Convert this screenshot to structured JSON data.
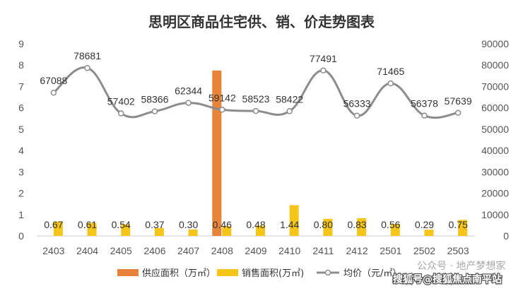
{
  "chart_data": {
    "type": "bar+line",
    "title": "思明区商品住宅供、销、价走势图表",
    "categories": [
      "2403",
      "2404",
      "2405",
      "2406",
      "2407",
      "2408",
      "2409",
      "2410",
      "2411",
      "2412",
      "2501",
      "2502",
      "2503"
    ],
    "series": [
      {
        "name": "供应面积（万㎡）",
        "type": "bar",
        "axis": "left",
        "color": "#E8833A",
        "values": [
          0,
          0,
          0,
          0,
          0,
          7.75,
          0,
          0,
          0,
          0,
          0,
          0,
          0
        ]
      },
      {
        "name": "销售面积(万㎡)",
        "type": "bar",
        "axis": "left",
        "color": "#F5C518",
        "values": [
          0.67,
          0.61,
          0.54,
          0.37,
          0.3,
          0.46,
          0.48,
          1.44,
          0.8,
          0.83,
          0.56,
          0.29,
          0.75
        ]
      },
      {
        "name": "均价（元/㎡）",
        "type": "line",
        "axis": "right",
        "color": "#8C8C8C",
        "values": [
          67088,
          78681,
          57402,
          58366,
          62344,
          59142,
          58523,
          58422,
          77491,
          56333,
          71465,
          56378,
          57639
        ]
      }
    ],
    "left_axis": {
      "ticks": [
        "0",
        "1",
        "2",
        "3",
        "4",
        "5",
        "6",
        "7",
        "8",
        "9"
      ],
      "ylim": [
        0,
        9
      ]
    },
    "right_axis": {
      "ticks": [
        "0",
        "10000",
        "20000",
        "30000",
        "40000",
        "50000",
        "60000",
        "70000",
        "80000",
        "90000"
      ],
      "ylim": [
        0,
        90000
      ]
    },
    "legend_position": "bottom",
    "grid": false
  },
  "watermark": {
    "line1": "公众号 · 地产梦想家",
    "line2": "搜狐号@搜狐焦点南平站"
  }
}
